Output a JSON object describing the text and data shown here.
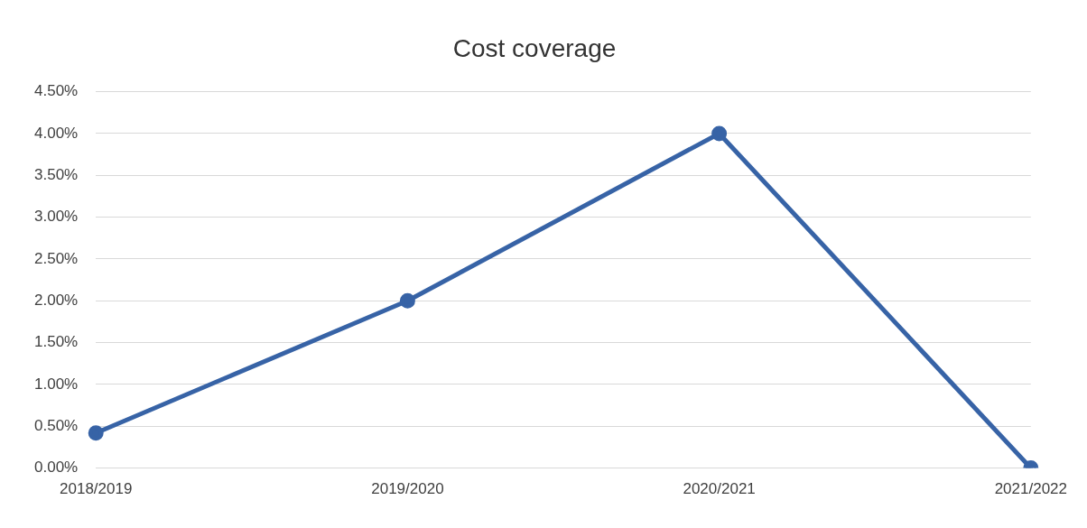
{
  "chart_data": {
    "type": "line",
    "title": "Cost coverage",
    "categories": [
      "2018/2019",
      "2019/2020",
      "2020/2021",
      "2021/2022"
    ],
    "series": [
      {
        "color": "#3763a6",
        "values": [
          0.42,
          2.0,
          4.0,
          0.0
        ]
      }
    ],
    "ylim": [
      0,
      4.5
    ],
    "yticks": [
      {
        "value": 0,
        "label": "0.00%"
      },
      {
        "value": 0.5,
        "label": "0.50%"
      },
      {
        "value": 1,
        "label": "1.00%"
      },
      {
        "value": 1.5,
        "label": "1.50%"
      },
      {
        "value": 2,
        "label": "2.00%"
      },
      {
        "value": 2.5,
        "label": "2.50%"
      },
      {
        "value": 3,
        "label": "3.00%"
      },
      {
        "value": 3.5,
        "label": "3.50%"
      },
      {
        "value": 4,
        "label": "4.00%"
      },
      {
        "value": 4.5,
        "label": "4.50%"
      }
    ],
    "grid": "y",
    "legend": false,
    "marker": "circle",
    "line_style": "solid"
  }
}
